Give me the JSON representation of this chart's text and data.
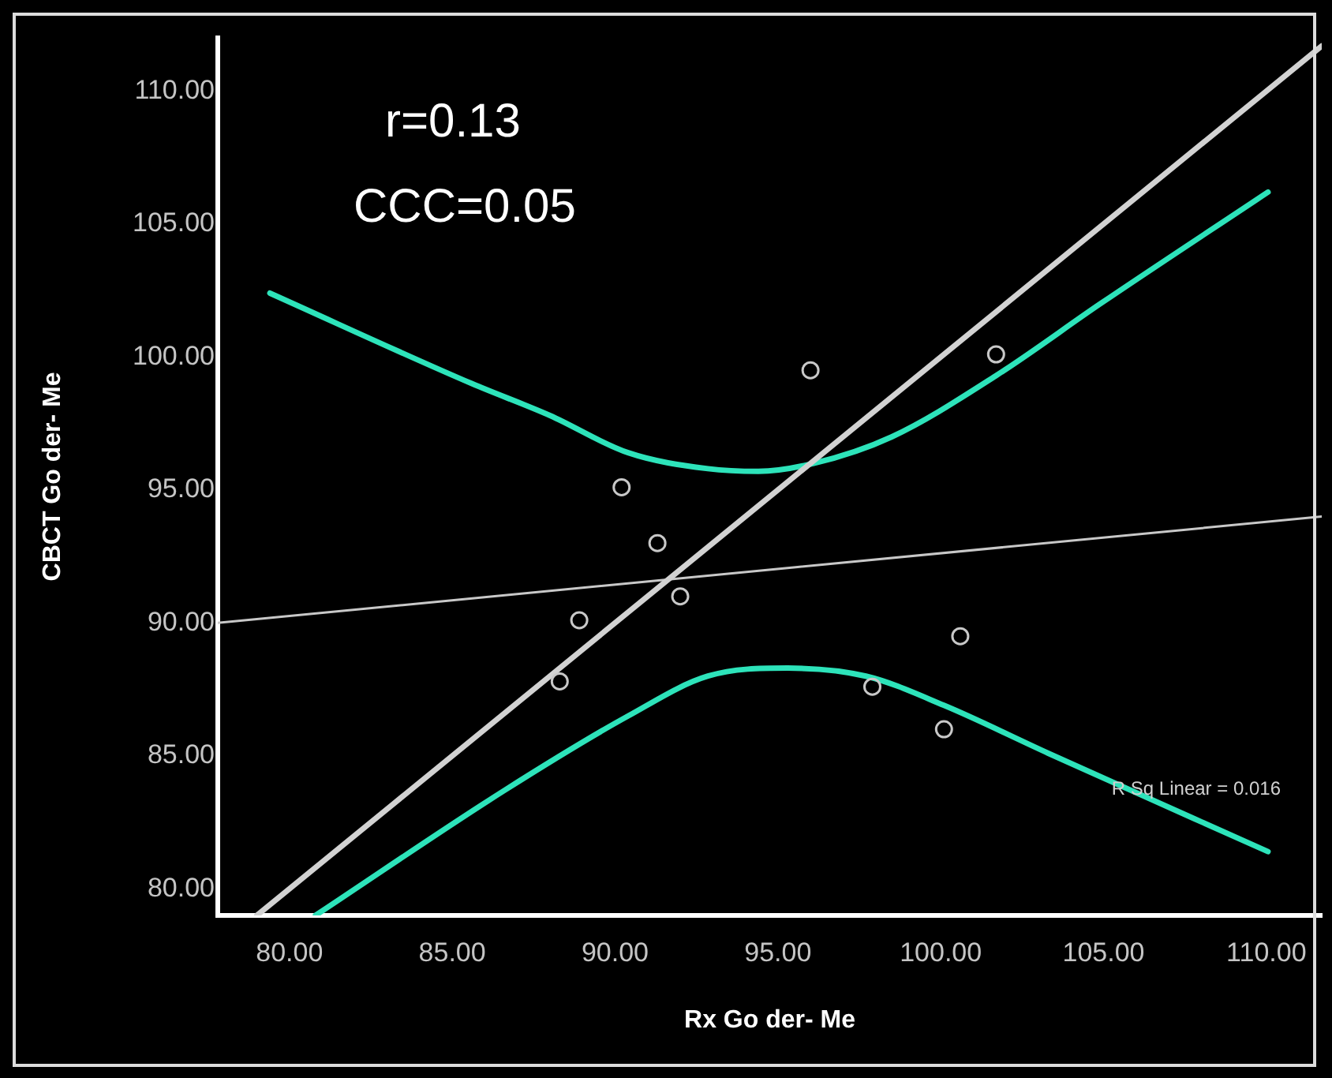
{
  "chart_data": {
    "type": "scatter",
    "xlabel": "Rx Go der- Me",
    "ylabel": "CBCT Go der- Me",
    "annotations": [
      "r=0.13",
      "CCC=0.05",
      "R Sq Linear = 0.016"
    ],
    "xlim": [
      77.8,
      111.7
    ],
    "ylim": [
      79,
      112
    ],
    "xticks": [
      {
        "value": 80,
        "label": "80.00"
      },
      {
        "value": 85,
        "label": "85.00"
      },
      {
        "value": 90,
        "label": "90.00"
      },
      {
        "value": 95,
        "label": "95.00"
      },
      {
        "value": 100,
        "label": "100.00"
      },
      {
        "value": 105,
        "label": "105.00"
      },
      {
        "value": 110,
        "label": "110.00"
      }
    ],
    "yticks": [
      {
        "value": 80,
        "label": "80.00"
      },
      {
        "value": 85,
        "label": "85.00"
      },
      {
        "value": 90,
        "label": "90.00"
      },
      {
        "value": 95,
        "label": "95.00"
      },
      {
        "value": 100,
        "label": "100.00"
      },
      {
        "value": 105,
        "label": "105.00"
      },
      {
        "value": 110,
        "label": "110.00"
      }
    ],
    "grid": false,
    "series": [
      {
        "marker": "circle",
        "color": "#c8c8c8",
        "x": [
          96.0,
          101.7,
          90.2,
          91.3,
          92.0,
          88.9,
          88.3,
          100.6,
          97.9,
          100.1
        ],
        "values": [
          99.5,
          100.1,
          95.1,
          93.0,
          91.0,
          90.1,
          87.8,
          89.5,
          87.6,
          86.0
        ]
      },
      {
        "type": "line",
        "marker": "none",
        "color": "#d2d2d2",
        "x": [
          79,
          111.7
        ],
        "values": [
          79,
          111.7
        ]
      },
      {
        "type": "line",
        "marker": "none",
        "color": "#c8c8c8",
        "x": [
          77.8,
          111.7
        ],
        "values": [
          90.0,
          94.0
        ]
      },
      {
        "type": "line",
        "marker": "none",
        "color": "#2de3ba",
        "x": [
          79.4,
          85.6,
          88.0,
          90.4,
          92.85,
          94.4,
          96.1,
          98.5,
          101.7,
          104.9,
          110.05
        ],
        "values": [
          102.4,
          99.0,
          97.8,
          96.4,
          95.8,
          95.7,
          96.0,
          97.0,
          99.3,
          102.0,
          106.2
        ]
      },
      {
        "type": "line",
        "marker": "none",
        "color": "#2de3ba",
        "x": [
          80.8,
          86.6,
          90.4,
          92.85,
          95.3,
          97.7,
          100.1,
          103.3,
          110.05
        ],
        "values": [
          79.0,
          83.7,
          86.5,
          88.0,
          88.3,
          88.0,
          86.9,
          85.1,
          81.4
        ]
      }
    ]
  }
}
